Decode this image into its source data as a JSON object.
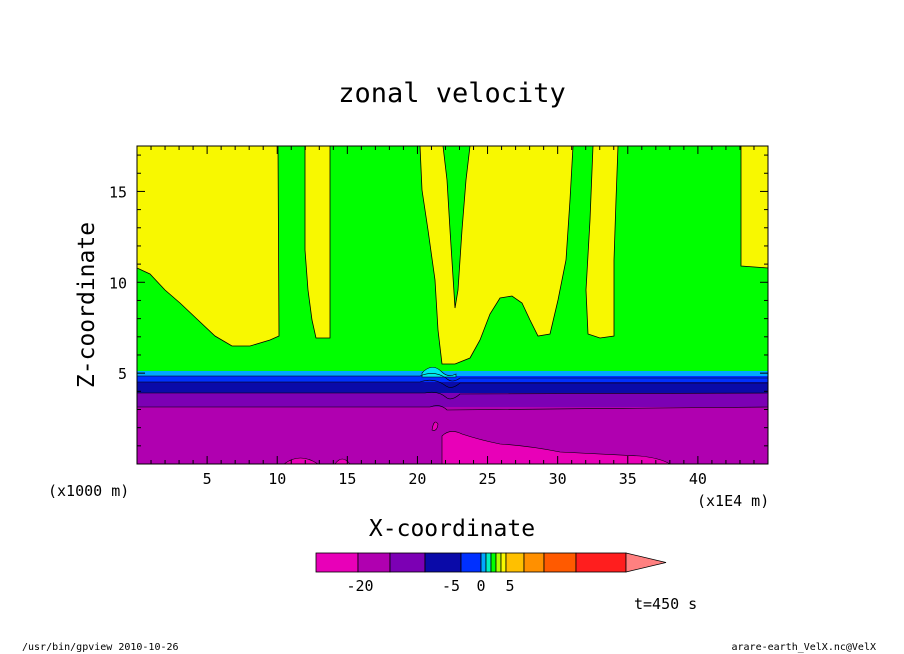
{
  "chart_data": {
    "type": "contour",
    "title": "zonal velocity",
    "xlabel": "X-coordinate",
    "ylabel": "Z-coordinate",
    "x_units_left": "(x1000 m)",
    "x_units_right": "(x1E4 m)",
    "xlim": [
      0,
      45
    ],
    "ylim": [
      0,
      17.5
    ],
    "x_ticks": [
      5,
      10,
      15,
      20,
      25,
      30,
      35,
      40
    ],
    "y_ticks": [
      5,
      10,
      15
    ],
    "time_label": "t=450 s",
    "colorbar": {
      "tick_labels": [
        "-20",
        "-5",
        "0",
        "5"
      ],
      "colors": [
        "#e800b8",
        "#b000b0",
        "#7c00b4",
        "#0a0aa8",
        "#0030ff",
        "#00a8ff",
        "#00f0c0",
        "#00ff00",
        "#b0ff00",
        "#f8f800",
        "#ffc000",
        "#ff9000",
        "#ff5a00",
        "#ff1e1e",
        "#ff8080"
      ]
    },
    "regions": [
      {
        "name": "upper westerly band",
        "color": "#00ff00",
        "z_range": [
          5.2,
          17.5
        ]
      },
      {
        "name": "strong easterly near ground",
        "color": "#b000b0",
        "z_range": [
          0,
          3.3
        ]
      },
      {
        "name": "transition layers",
        "color": "#0a0aa8",
        "z_range": [
          3.3,
          5.2
        ]
      }
    ]
  },
  "footer": {
    "left": "/usr/bin/gpview   2010-10-26",
    "right": "arare-earth_VelX.nc@VelX"
  }
}
